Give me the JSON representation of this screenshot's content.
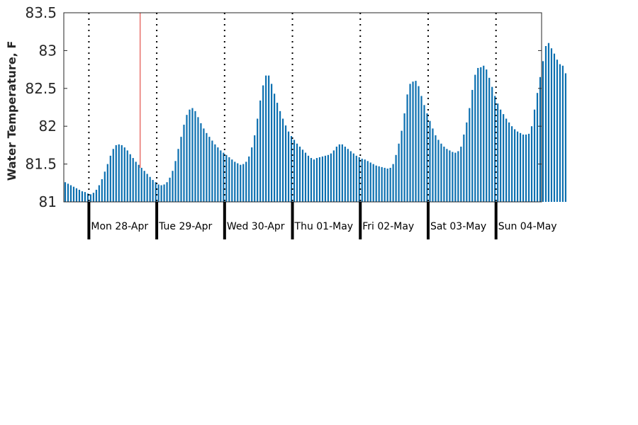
{
  "chart_data": {
    "type": "bar",
    "title": "",
    "xlabel": "",
    "ylabel": "Water Temperature, F",
    "ylim": [
      81,
      83.5
    ],
    "yticks": [
      81,
      81.5,
      82,
      82.5,
      83,
      83.5
    ],
    "ytick_labels": [
      "81",
      "81.5",
      "82",
      "82.5",
      "83",
      "83.5"
    ],
    "grid": false,
    "legend": "none",
    "bar_color": "#0b6fb0",
    "marker_color": "#e8716b",
    "hours_per_bar": 1,
    "bars_before_first_day": 9,
    "hours_total": 169,
    "current_time_hour": 27,
    "day_labels": [
      "Mon 28-Apr",
      "Tue 29-Apr",
      "Wed 30-Apr",
      "Thu 01-May",
      "Fri 02-May",
      "Sat 03-May",
      "Sun 04-May"
    ],
    "values": [
      81.26,
      81.24,
      81.22,
      81.2,
      81.18,
      81.16,
      81.14,
      81.13,
      81.11,
      81.1,
      81.12,
      81.16,
      81.22,
      81.3,
      81.4,
      81.5,
      81.61,
      81.7,
      81.75,
      81.76,
      81.75,
      81.72,
      81.68,
      81.63,
      81.58,
      81.53,
      81.49,
      81.45,
      81.41,
      81.37,
      81.33,
      81.29,
      81.26,
      81.23,
      81.22,
      81.23,
      81.26,
      81.32,
      81.41,
      81.54,
      81.7,
      81.86,
      82.02,
      82.15,
      82.22,
      82.24,
      82.2,
      82.12,
      82.04,
      81.97,
      81.91,
      81.86,
      81.81,
      81.76,
      81.72,
      81.68,
      81.65,
      81.62,
      81.59,
      81.56,
      81.53,
      81.51,
      81.49,
      81.5,
      81.53,
      81.6,
      81.72,
      81.88,
      82.1,
      82.34,
      82.54,
      82.67,
      82.67,
      82.56,
      82.43,
      82.31,
      82.2,
      82.1,
      82.01,
      81.93,
      81.87,
      81.82,
      81.77,
      81.73,
      81.69,
      81.65,
      81.61,
      81.58,
      81.56,
      81.58,
      81.59,
      81.6,
      81.61,
      81.62,
      81.64,
      81.68,
      81.73,
      81.76,
      81.76,
      81.73,
      81.7,
      81.67,
      81.64,
      81.61,
      81.59,
      81.57,
      81.56,
      81.54,
      81.52,
      81.5,
      81.48,
      81.47,
      81.46,
      81.45,
      81.44,
      81.45,
      81.5,
      81.62,
      81.77,
      81.94,
      82.17,
      82.42,
      82.56,
      82.59,
      82.6,
      82.53,
      82.4,
      82.28,
      82.17,
      82.07,
      81.97,
      81.88,
      81.82,
      81.77,
      81.73,
      81.7,
      81.68,
      81.66,
      81.65,
      81.67,
      81.73,
      81.89,
      82.05,
      82.24,
      82.48,
      82.68,
      82.77,
      82.78,
      82.8,
      82.75,
      82.64,
      82.52,
      82.4,
      82.3,
      82.22,
      82.16,
      82.1,
      82.05,
      82.0,
      81.96,
      81.93,
      81.91,
      81.89,
      81.89,
      81.9,
      82.0,
      82.22,
      82.44,
      82.65,
      82.86,
      83.06,
      83.1,
      83.03,
      82.96,
      82.88,
      82.82,
      82.8,
      82.7
    ]
  }
}
